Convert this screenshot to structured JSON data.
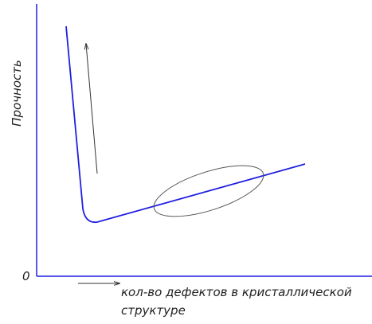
{
  "axes": {
    "y_label": "Прочность",
    "origin": "0",
    "x_label": [
      "кол-во дефектов в кристаллической",
      "структуре"
    ]
  }
}
